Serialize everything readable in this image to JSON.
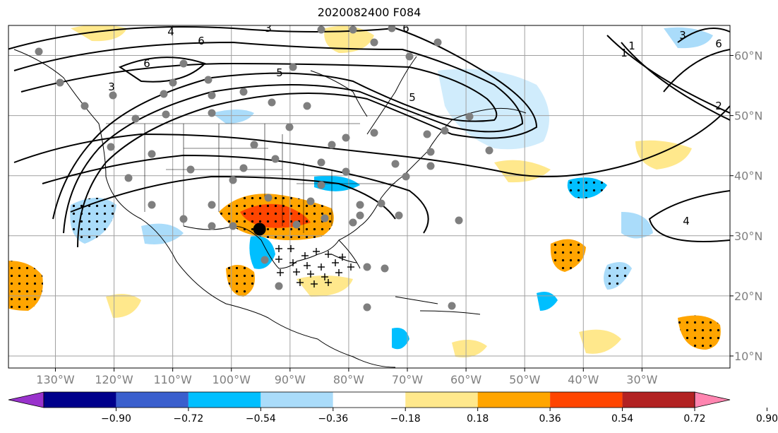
{
  "title": "2020082400 F084",
  "map": {
    "lon_range": [
      -138,
      -15
    ],
    "lat_range": [
      8,
      65
    ],
    "lon_ticks": [
      {
        "lon": -130,
        "label": "130°W"
      },
      {
        "lon": -120,
        "label": "120°W"
      },
      {
        "lon": -110,
        "label": "110°W"
      },
      {
        "lon": -100,
        "label": "100°W"
      },
      {
        "lon": -90,
        "label": "90°W"
      },
      {
        "lon": -80,
        "label": "80°W"
      },
      {
        "lon": -70,
        "label": "70°W"
      },
      {
        "lon": -60,
        "label": "60°W"
      },
      {
        "lon": -50,
        "label": "50°W"
      },
      {
        "lon": -40,
        "label": "40°W"
      },
      {
        "lon": -30,
        "label": "30°W"
      }
    ],
    "lat_ticks": [
      {
        "lat": 60,
        "label": "60°N"
      },
      {
        "lat": 50,
        "label": "50°N"
      },
      {
        "lat": 40,
        "label": "40°N"
      },
      {
        "lat": 30,
        "label": "30°N"
      },
      {
        "lat": 20,
        "label": "20°N"
      },
      {
        "lat": 10,
        "label": "10°N"
      }
    ],
    "contour_labels": [
      "4",
      "3",
      "6",
      "6",
      "6",
      "5",
      "3",
      "5",
      "3",
      "6",
      "1",
      "2",
      "4",
      "1"
    ],
    "marked_point": {
      "lon": -95.2,
      "lat": 31.1
    }
  },
  "colorbar": {
    "colors": [
      "#9932cc",
      "#00008b",
      "#3a5fcd",
      "#00bfff",
      "#aadcfa",
      "#ffffff",
      "#ffe88c",
      "#ffa500",
      "#ff4500",
      "#b22222",
      "#ff85b0"
    ],
    "labels": [
      "−0.90",
      "−0.72",
      "−0.54",
      "−0.36",
      "−0.18",
      "0.18",
      "0.36",
      "0.54",
      "0.72",
      "0.90"
    ]
  }
}
